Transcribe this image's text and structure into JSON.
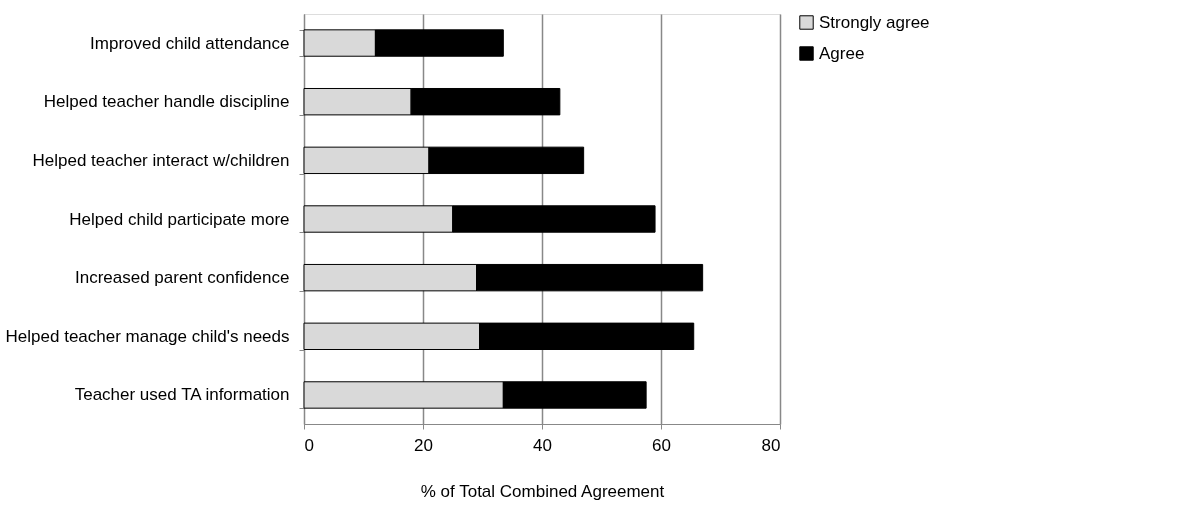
{
  "chart_data": {
    "type": "bar",
    "orientation": "horizontal",
    "stacked": true,
    "xlabel": "% of Total Combined Agreement",
    "categories": [
      "Improved child attendance",
      "Helped teacher handle discipline",
      "Helped teacher interact w/children ",
      "Helped child participate more",
      "Increased parent confidence",
      "Helped teacher manage child's needs",
      "Teacher used TA information"
    ],
    "series": [
      {
        "name": "Strongly agree",
        "color": "#d9d9d9",
        "values": [
          12,
          18,
          21,
          25,
          29,
          29.5,
          33.5
        ]
      },
      {
        "name": "Agree",
        "color": "#000000",
        "values": [
          21.5,
          25,
          26,
          34,
          38,
          36,
          24
        ]
      }
    ],
    "xlim": [
      0,
      80
    ],
    "xticks": [
      0,
      20,
      40,
      60,
      80
    ],
    "grid": "x",
    "legend": "right"
  }
}
